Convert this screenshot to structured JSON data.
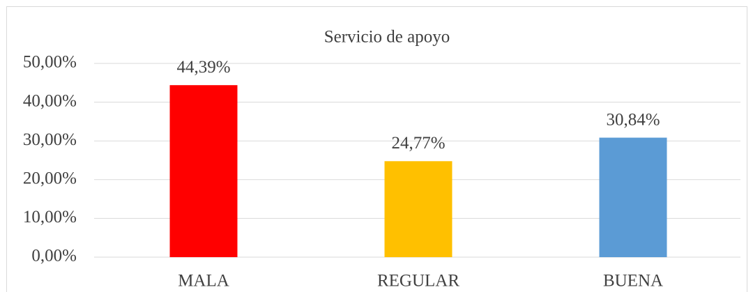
{
  "chart_data": {
    "type": "bar",
    "title": "Servicio de apoyo",
    "categories": [
      "MALA",
      "REGULAR",
      "BUENA"
    ],
    "values": [
      44.39,
      24.77,
      30.84
    ],
    "value_labels": [
      "44,39%",
      "24,77%",
      "30,84%"
    ],
    "colors": [
      "#ff0000",
      "#ffc000",
      "#5b9bd5"
    ],
    "ylim": [
      0,
      50
    ],
    "yticks": [
      {
        "value": 0,
        "label": "0,00%"
      },
      {
        "value": 10,
        "label": "10,00%"
      },
      {
        "value": 20,
        "label": "20,00%"
      },
      {
        "value": 30,
        "label": "30,00%"
      },
      {
        "value": 40,
        "label": "40,00%"
      },
      {
        "value": 50,
        "label": "50,00%"
      }
    ],
    "grid": true
  }
}
